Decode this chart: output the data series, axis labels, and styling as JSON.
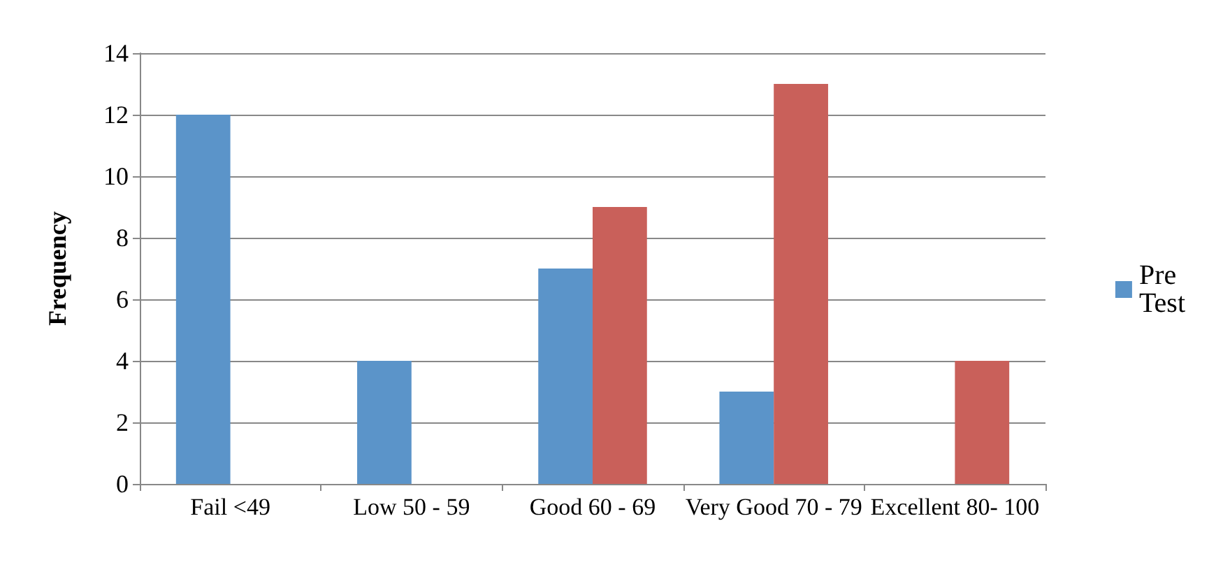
{
  "chart_data": {
    "type": "bar",
    "ylabel": "Frequency",
    "categories": [
      "Fail <49",
      "Low 50 - 59",
      "Good 60 - 69",
      "Very Good 70 - 79",
      "Excellent 80- 100"
    ],
    "series": [
      {
        "name": "Pre Test",
        "color": "#5b94c9",
        "values": [
          12,
          4,
          7,
          3,
          0
        ]
      },
      {
        "color": "#c9605a",
        "values": [
          0,
          0,
          9,
          13,
          4
        ]
      }
    ],
    "ylim": [
      0,
      14
    ],
    "yticks": [
      0,
      2,
      4,
      6,
      8,
      10,
      12,
      14
    ],
    "grid": "y",
    "legend": "right"
  }
}
